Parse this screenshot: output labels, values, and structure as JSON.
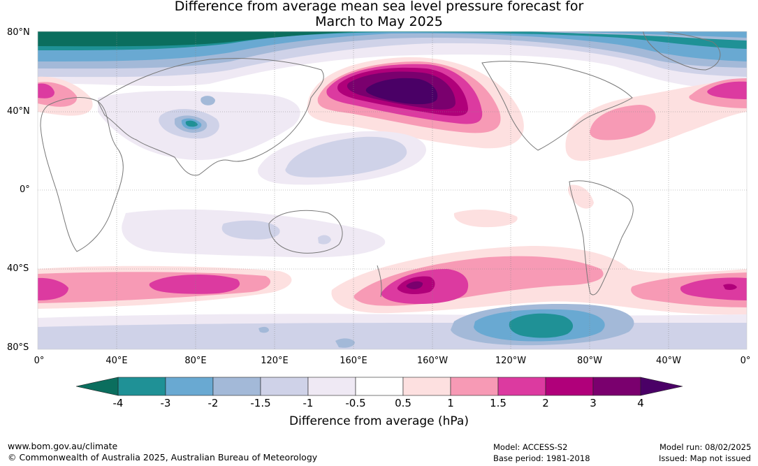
{
  "title_line1": "Difference from average mean sea level pressure forecast for",
  "title_line2": "March to May 2025",
  "map": {
    "lat_labels": [
      "80°N",
      "40°N",
      "0°",
      "40°S",
      "80°S"
    ],
    "lon_labels": [
      "0°",
      "40°E",
      "80°E",
      "120°E",
      "160°E",
      "160°W",
      "120°W",
      "80°W",
      "40°W",
      "0°"
    ],
    "colors": {
      "land_outline": "#777777",
      "gridline": "#888888"
    }
  },
  "colorbar": {
    "title": "Difference from average (hPa)",
    "tick_labels": [
      "-4",
      "-3",
      "-2",
      "-1.5",
      "-1",
      "-0.5",
      "0.5",
      "1",
      "1.5",
      "2",
      "3",
      "4"
    ],
    "low_extend_color": "#0b6e5e",
    "high_extend_color": "#4a0066",
    "bins": [
      {
        "from": -4,
        "to": -3,
        "color": "#1f9196"
      },
      {
        "from": -3,
        "to": -2,
        "color": "#69a9d2"
      },
      {
        "from": -2,
        "to": -1.5,
        "color": "#a3b9d8"
      },
      {
        "from": -1.5,
        "to": -1,
        "color": "#cfd2e8"
      },
      {
        "from": -1,
        "to": -0.5,
        "color": "#efe9f4"
      },
      {
        "from": -0.5,
        "to": 0.5,
        "color": "#ffffff"
      },
      {
        "from": 0.5,
        "to": 1,
        "color": "#fde0e0"
      },
      {
        "from": 1,
        "to": 1.5,
        "color": "#f79ab5"
      },
      {
        "from": 1.5,
        "to": 2,
        "color": "#dc3aa0"
      },
      {
        "from": 2,
        "to": 3,
        "color": "#b0007a"
      },
      {
        "from": 3,
        "to": 4,
        "color": "#7a006e"
      }
    ]
  },
  "footer": {
    "website": "www.bom.gov.au/climate",
    "copyright": "© Commonwealth of Australia 2025, Australian Bureau of Meteorology",
    "model": "Model: ACCESS-S2",
    "base_period": "Base period: 1981-2018",
    "model_run": "Model run: 08/02/2025",
    "issued": "Issued: Map not issued"
  }
}
